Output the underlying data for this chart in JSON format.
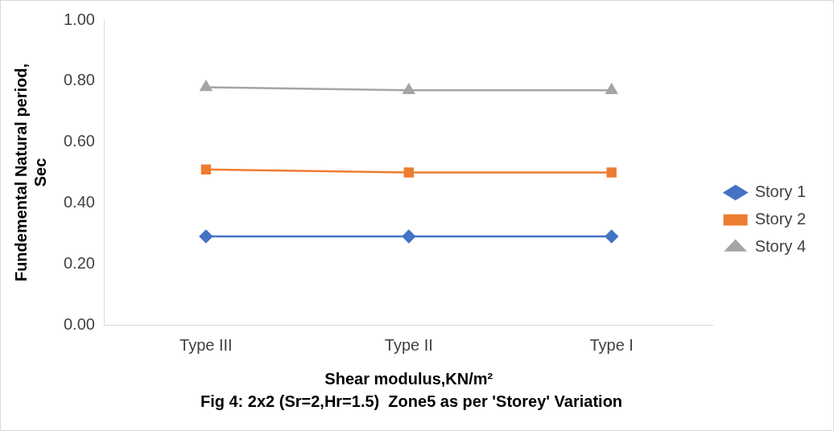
{
  "chart_data": {
    "type": "line",
    "title": "Fig 4: 2x2 (Sr=2,Hr=1.5)  Zone5 as per 'Storey' Variation",
    "xlabel": "Shear modulus,KN/m²",
    "ylabel": "Fundemental Natural period, Sec",
    "categories": [
      "Type III",
      "Type II",
      "Type I"
    ],
    "series": [
      {
        "name": "Story 1",
        "color": "#4472c4",
        "marker": "diamond",
        "values": [
          0.29,
          0.29,
          0.29
        ]
      },
      {
        "name": "Story 2",
        "color": "#ed7d31",
        "marker": "square",
        "values": [
          0.51,
          0.5,
          0.5
        ]
      },
      {
        "name": "Story 4",
        "color": "#a5a5a5",
        "marker": "triangle",
        "values": [
          0.78,
          0.77,
          0.77
        ]
      }
    ],
    "ylim": [
      0,
      1
    ],
    "yticks": [
      {
        "value": 0,
        "label": "0.00"
      },
      {
        "value": 0.2,
        "label": "0.20"
      },
      {
        "value": 0.4,
        "label": "0.40"
      },
      {
        "value": 0.6,
        "label": "0.60"
      },
      {
        "value": 0.8,
        "label": "0.80"
      },
      {
        "value": 1,
        "label": "1.00"
      }
    ],
    "grid": false,
    "legend": "right",
    "line_style": "solid"
  }
}
